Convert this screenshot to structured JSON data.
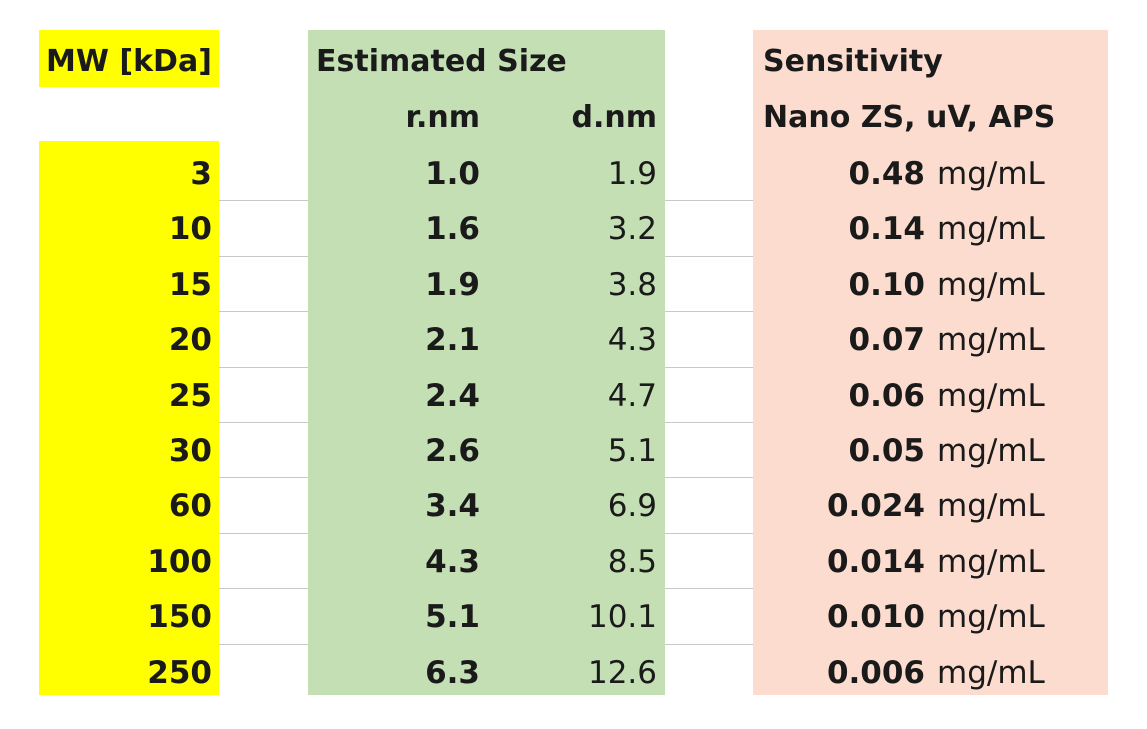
{
  "headers": {
    "mw": "MW [kDa]",
    "estimated_size": "Estimated Size",
    "radius": "r.nm",
    "diameter": "d.nm",
    "sensitivity": "Sensitivity",
    "instrument": "Nano ZS, uV, APS"
  },
  "rows": [
    {
      "mw": "3",
      "r": "1.0",
      "d": "1.9",
      "sens": "0.48",
      "unit": "mg/mL"
    },
    {
      "mw": "10",
      "r": "1.6",
      "d": "3.2",
      "sens": "0.14",
      "unit": "mg/mL"
    },
    {
      "mw": "15",
      "r": "1.9",
      "d": "3.8",
      "sens": "0.10",
      "unit": "mg/mL"
    },
    {
      "mw": "20",
      "r": "2.1",
      "d": "4.3",
      "sens": "0.07",
      "unit": "mg/mL"
    },
    {
      "mw": "25",
      "r": "2.4",
      "d": "4.7",
      "sens": "0.06",
      "unit": "mg/mL"
    },
    {
      "mw": "30",
      "r": "2.6",
      "d": "5.1",
      "sens": "0.05",
      "unit": "mg/mL"
    },
    {
      "mw": "60",
      "r": "3.4",
      "d": "6.9",
      "sens": "0.024",
      "unit": "mg/mL"
    },
    {
      "mw": "100",
      "r": "4.3",
      "d": "8.5",
      "sens": "0.014",
      "unit": "mg/mL"
    },
    {
      "mw": "150",
      "r": "5.1",
      "d": "10.1",
      "sens": "0.010",
      "unit": "mg/mL"
    },
    {
      "mw": "250",
      "r": "6.3",
      "d": "12.6",
      "sens": "0.006",
      "unit": "mg/mL"
    }
  ],
  "colors": {
    "mw_column": "#ffff00",
    "size_column": "#c4dfb4",
    "sensitivity_column": "#fbdccf",
    "gridline": "#c8c8c8"
  }
}
